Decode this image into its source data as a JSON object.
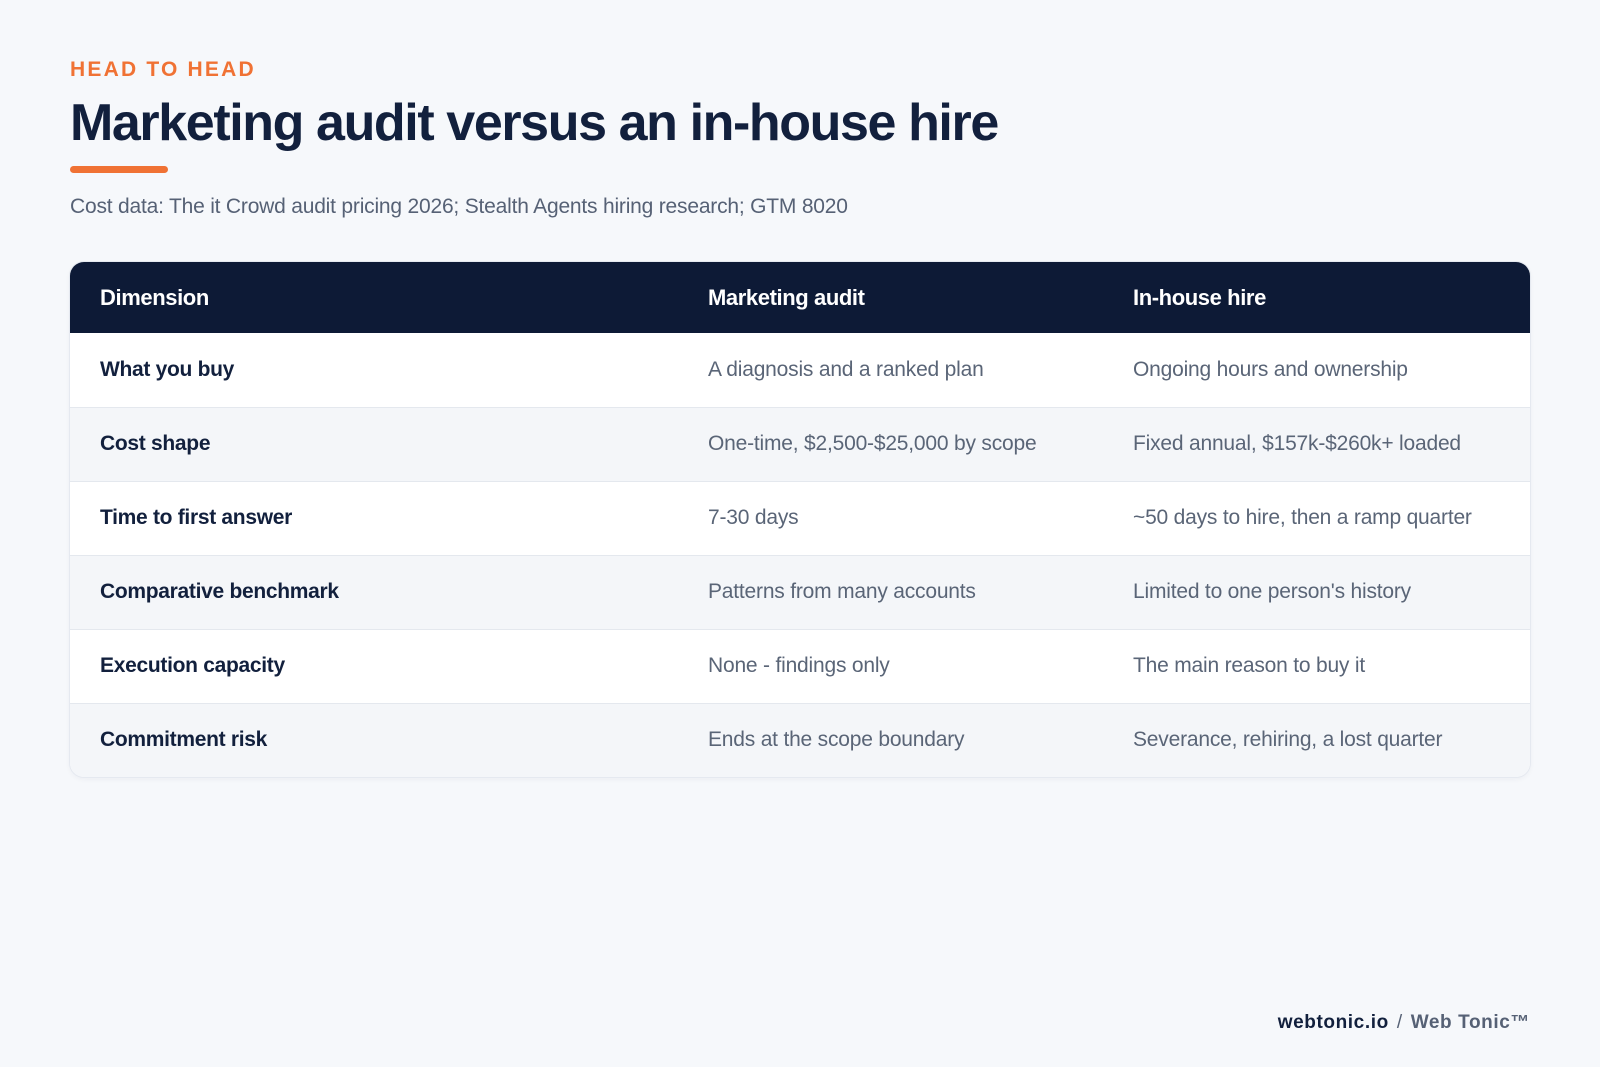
{
  "header": {
    "eyebrow": "HEAD TO HEAD",
    "title": "Marketing audit versus an in-house hire",
    "subtitle": "Cost data: The it Crowd audit pricing 2026; Stealth Agents hiring research; GTM 8020",
    "accent_color": "#f07234"
  },
  "table": {
    "columns": [
      "Dimension",
      "Marketing audit",
      "In-house hire"
    ],
    "rows": [
      {
        "dimension": "What you buy",
        "audit": "A diagnosis and a ranked plan",
        "hire": "Ongoing hours and ownership"
      },
      {
        "dimension": "Cost shape",
        "audit": "One-time, $2,500-$25,000 by scope",
        "hire": "Fixed annual, $157k-$260k+ loaded"
      },
      {
        "dimension": "Time to first answer",
        "audit": "7-30 days",
        "hire": "~50 days to hire, then a ramp quarter"
      },
      {
        "dimension": "Comparative benchmark",
        "audit": "Patterns from many accounts",
        "hire": "Limited to one person's history"
      },
      {
        "dimension": "Execution capacity",
        "audit": "None - findings only",
        "hire": "The main reason to buy it"
      },
      {
        "dimension": "Commitment risk",
        "audit": "Ends at the scope boundary",
        "hire": "Severance, rehiring, a lost quarter"
      }
    ],
    "header_color": "#0d1a36"
  },
  "footer": {
    "domain": "webtonic.io",
    "separator": "/",
    "brand": "Web Tonic™"
  }
}
